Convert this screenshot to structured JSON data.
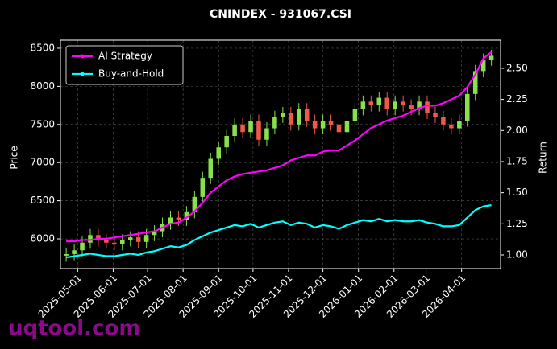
{
  "chart_data": {
    "type": "candlestick",
    "title": "CNINDEX - 931067.CSI",
    "ylabel": "Price",
    "y2label": "Return",
    "watermark": "uqtool.com",
    "x": [
      "2025-04-21",
      "2025-04-28",
      "2025-05-05",
      "2025-05-12",
      "2025-05-19",
      "2025-05-26",
      "2025-06-02",
      "2025-06-09",
      "2025-06-16",
      "2025-06-23",
      "2025-06-30",
      "2025-07-07",
      "2025-07-14",
      "2025-07-21",
      "2025-07-28",
      "2025-08-04",
      "2025-08-11",
      "2025-08-18",
      "2025-08-25",
      "2025-09-01",
      "2025-09-08",
      "2025-09-15",
      "2025-09-22",
      "2025-09-29",
      "2025-10-06",
      "2025-10-13",
      "2025-10-20",
      "2025-10-27",
      "2025-11-03",
      "2025-11-10",
      "2025-11-17",
      "2025-11-24",
      "2025-12-01",
      "2025-12-08",
      "2025-12-15",
      "2025-12-22",
      "2025-12-29",
      "2026-01-05",
      "2026-01-12",
      "2026-01-19",
      "2026-01-26",
      "2026-02-02",
      "2026-02-09",
      "2026-02-16",
      "2026-02-23",
      "2026-03-02",
      "2026-03-09",
      "2026-03-16",
      "2026-03-23",
      "2026-03-30",
      "2026-04-06",
      "2026-04-13",
      "2026-04-20",
      "2026-04-27"
    ],
    "open": [
      5780,
      5800,
      5850,
      5950,
      6050,
      5980,
      5950,
      5930,
      5980,
      6020,
      5960,
      6050,
      6100,
      6200,
      6280,
      6250,
      6350,
      6550,
      6800,
      7050,
      7200,
      7350,
      7500,
      7400,
      7550,
      7300,
      7450,
      7600,
      7650,
      7500,
      7700,
      7550,
      7450,
      7550,
      7500,
      7400,
      7550,
      7700,
      7800,
      7750,
      7850,
      7700,
      7800,
      7750,
      7700,
      7800,
      7650,
      7600,
      7500,
      7450,
      7550,
      7900,
      8200,
      8350
    ],
    "high": [
      5880,
      5930,
      6030,
      6130,
      6130,
      6060,
      6030,
      6060,
      6100,
      6100,
      6130,
      6180,
      6280,
      6360,
      6360,
      6430,
      6630,
      6880,
      7130,
      7280,
      7430,
      7580,
      7580,
      7630,
      7630,
      7530,
      7680,
      7730,
      7730,
      7780,
      7780,
      7630,
      7630,
      7630,
      7580,
      7630,
      7780,
      7880,
      7880,
      7930,
      7930,
      7880,
      7880,
      7830,
      7880,
      7880,
      7730,
      7680,
      7580,
      7630,
      7980,
      8280,
      8430,
      8480
    ],
    "low": [
      5700,
      5720,
      5770,
      5870,
      5900,
      5870,
      5850,
      5850,
      5900,
      5880,
      5880,
      5970,
      6020,
      6120,
      6170,
      6170,
      6270,
      6470,
      6720,
      6970,
      7120,
      7270,
      7320,
      7320,
      7220,
      7220,
      7370,
      7520,
      7420,
      7420,
      7470,
      7370,
      7370,
      7420,
      7320,
      7320,
      7470,
      7620,
      7670,
      7670,
      7620,
      7620,
      7670,
      7620,
      7620,
      7570,
      7520,
      7420,
      7370,
      7370,
      7470,
      7820,
      8120,
      8270
    ],
    "close": [
      5800,
      5850,
      5950,
      6050,
      5980,
      5950,
      5930,
      5980,
      6020,
      5960,
      6050,
      6100,
      6200,
      6280,
      6250,
      6350,
      6550,
      6800,
      7050,
      7200,
      7350,
      7500,
      7400,
      7550,
      7300,
      7450,
      7600,
      7650,
      7500,
      7700,
      7550,
      7450,
      7550,
      7500,
      7400,
      7550,
      7700,
      7800,
      7750,
      7850,
      7700,
      7800,
      7750,
      7700,
      7800,
      7650,
      7600,
      7500,
      7450,
      7550,
      7900,
      8200,
      8350,
      8400
    ],
    "up_color": "#88e04a",
    "down_color": "#f0584a",
    "series": [
      {
        "name": "AI Strategy",
        "color": "#ff00ff",
        "axis": "y2",
        "values": [
          1.11,
          1.11,
          1.12,
          1.12,
          1.13,
          1.13,
          1.14,
          1.15,
          1.16,
          1.17,
          1.18,
          1.19,
          1.22,
          1.25,
          1.26,
          1.3,
          1.35,
          1.42,
          1.5,
          1.55,
          1.6,
          1.63,
          1.65,
          1.66,
          1.67,
          1.68,
          1.7,
          1.72,
          1.76,
          1.78,
          1.8,
          1.8,
          1.83,
          1.84,
          1.84,
          1.88,
          1.92,
          1.97,
          2.02,
          2.05,
          2.08,
          2.1,
          2.12,
          2.15,
          2.18,
          2.2,
          2.2,
          2.22,
          2.25,
          2.28,
          2.35,
          2.45,
          2.58,
          2.63
        ]
      },
      {
        "name": "Buy-and-Hold",
        "color": "#00ffff",
        "axis": "y2",
        "values": [
          0.98,
          0.99,
          1.0,
          1.01,
          1.0,
          0.99,
          0.99,
          1.0,
          1.01,
          1.0,
          1.02,
          1.03,
          1.05,
          1.07,
          1.06,
          1.08,
          1.12,
          1.15,
          1.18,
          1.2,
          1.22,
          1.24,
          1.23,
          1.25,
          1.22,
          1.24,
          1.26,
          1.27,
          1.24,
          1.26,
          1.25,
          1.22,
          1.24,
          1.23,
          1.21,
          1.24,
          1.26,
          1.28,
          1.27,
          1.29,
          1.27,
          1.28,
          1.27,
          1.27,
          1.28,
          1.26,
          1.25,
          1.23,
          1.23,
          1.24,
          1.3,
          1.36,
          1.39,
          1.4
        ]
      }
    ],
    "xlim": [
      "2025-04-16",
      "2026-05-05"
    ],
    "xticks": [
      "2025-05-01",
      "2025-06-01",
      "2025-07-01",
      "2025-08-01",
      "2025-09-01",
      "2025-10-01",
      "2025-11-01",
      "2025-12-01",
      "2026-01-01",
      "2026-02-01",
      "2026-03-01",
      "2026-04-01"
    ],
    "ylim": [
      5610,
      8605
    ],
    "yticks": [
      6000,
      6500,
      7000,
      7500,
      8000,
      8500
    ],
    "y2lim": [
      0.89,
      2.726
    ],
    "y2ticks": [
      {
        "value": 1,
        "label": "1.00"
      },
      1.25,
      {
        "value": 1.5,
        "label": "1.50"
      },
      1.75,
      {
        "value": 2,
        "label": "2.00"
      },
      2.25,
      {
        "value": 2.5,
        "label": "2.50"
      }
    ],
    "grid": true,
    "legend": "upper left"
  }
}
